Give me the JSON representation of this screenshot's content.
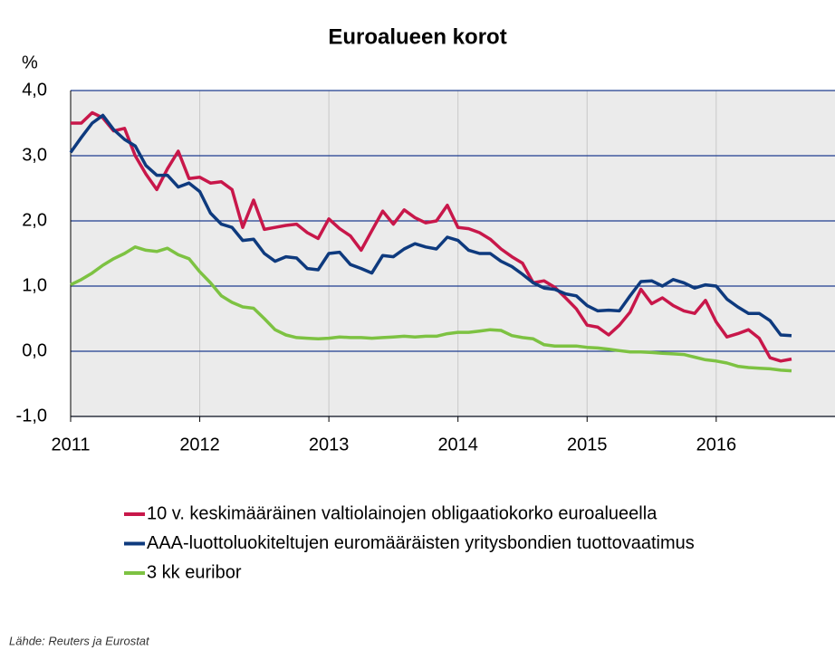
{
  "chart_data": {
    "type": "line",
    "title": "Euroalueen korot",
    "ylabel": "%",
    "source": "Lähde: Reuters ja Eurostat",
    "x": [
      2011,
      2011.083,
      2011.167,
      2011.25,
      2011.333,
      2011.417,
      2011.5,
      2011.583,
      2011.667,
      2011.75,
      2011.833,
      2011.917,
      2012,
      2012.083,
      2012.167,
      2012.25,
      2012.333,
      2012.417,
      2012.5,
      2012.583,
      2012.667,
      2012.75,
      2012.833,
      2012.917,
      2013,
      2013.083,
      2013.167,
      2013.25,
      2013.333,
      2013.417,
      2013.5,
      2013.583,
      2013.667,
      2013.75,
      2013.833,
      2013.917,
      2014,
      2014.083,
      2014.167,
      2014.25,
      2014.333,
      2014.417,
      2014.5,
      2014.583,
      2014.667,
      2014.75,
      2014.833,
      2014.917,
      2015,
      2015.083,
      2015.167,
      2015.25,
      2015.333,
      2015.417,
      2015.5,
      2015.583,
      2015.667,
      2015.75,
      2015.833,
      2015.917,
      2016,
      2016.083,
      2016.167,
      2016.25,
      2016.333,
      2016.417,
      2016.5,
      2016.583
    ],
    "series": [
      {
        "name": "10 v. keskimääräinen valtiolainojen obligaatiokorko euroalueella",
        "color": "#c8174a",
        "values": [
          3.5,
          3.5,
          3.66,
          3.58,
          3.38,
          3.42,
          3.0,
          2.72,
          2.48,
          2.8,
          3.07,
          2.65,
          2.67,
          2.58,
          2.6,
          2.48,
          1.9,
          2.32,
          1.87,
          1.9,
          1.93,
          1.95,
          1.82,
          1.73,
          2.03,
          1.88,
          1.77,
          1.55,
          1.85,
          2.15,
          1.95,
          2.17,
          2.05,
          1.97,
          2.0,
          2.24,
          1.9,
          1.88,
          1.82,
          1.72,
          1.57,
          1.45,
          1.35,
          1.05,
          1.08,
          0.98,
          0.82,
          0.65,
          0.4,
          0.37,
          0.25,
          0.4,
          0.6,
          0.95,
          0.73,
          0.82,
          0.7,
          0.62,
          0.58,
          0.78,
          0.45,
          0.22,
          0.27,
          0.33,
          0.2,
          -0.1,
          -0.15,
          -0.12
        ]
      },
      {
        "name": "AAA-luottoluokiteltujen euromääräisten yritysbondien tuottovaatimus",
        "color": "#0e3a7e",
        "values": [
          3.05,
          3.28,
          3.5,
          3.62,
          3.4,
          3.25,
          3.15,
          2.85,
          2.7,
          2.7,
          2.52,
          2.58,
          2.45,
          2.12,
          1.95,
          1.9,
          1.7,
          1.72,
          1.5,
          1.38,
          1.45,
          1.43,
          1.27,
          1.25,
          1.5,
          1.52,
          1.33,
          1.27,
          1.2,
          1.47,
          1.45,
          1.57,
          1.65,
          1.6,
          1.57,
          1.75,
          1.7,
          1.55,
          1.5,
          1.5,
          1.38,
          1.3,
          1.18,
          1.05,
          0.97,
          0.95,
          0.88,
          0.85,
          0.7,
          0.62,
          0.63,
          0.62,
          0.85,
          1.07,
          1.08,
          1.0,
          1.1,
          1.05,
          0.97,
          1.02,
          1.0,
          0.8,
          0.68,
          0.58,
          0.58,
          0.47,
          0.25,
          0.24
        ]
      },
      {
        "name": "3 kk euribor",
        "color": "#7dc242",
        "values": [
          1.02,
          1.1,
          1.2,
          1.32,
          1.42,
          1.5,
          1.6,
          1.55,
          1.53,
          1.58,
          1.48,
          1.42,
          1.22,
          1.05,
          0.85,
          0.75,
          0.68,
          0.66,
          0.5,
          0.33,
          0.25,
          0.21,
          0.2,
          0.19,
          0.2,
          0.22,
          0.21,
          0.21,
          0.2,
          0.21,
          0.22,
          0.23,
          0.22,
          0.23,
          0.23,
          0.27,
          0.29,
          0.29,
          0.31,
          0.33,
          0.32,
          0.24,
          0.21,
          0.19,
          0.1,
          0.08,
          0.08,
          0.08,
          0.06,
          0.05,
          0.03,
          0.01,
          -0.01,
          -0.01,
          -0.02,
          -0.03,
          -0.04,
          -0.05,
          -0.09,
          -0.13,
          -0.15,
          -0.18,
          -0.23,
          -0.25,
          -0.26,
          -0.27,
          -0.29,
          -0.3
        ]
      }
    ],
    "xlim": [
      2011,
      2016.92
    ],
    "xticks": [
      2011,
      2012,
      2013,
      2014,
      2015,
      2016
    ],
    "ylim": [
      -1,
      4
    ],
    "yticks": [
      {
        "value": -1,
        "label": "-1,0"
      },
      {
        "value": 0,
        "label": "0,0"
      },
      {
        "value": 1,
        "label": "1,0"
      },
      {
        "value": 2,
        "label": "2,0"
      },
      {
        "value": 3,
        "label": "3,0"
      },
      {
        "value": 4,
        "label": "4,0"
      }
    ],
    "grid": true,
    "legend": "bottom"
  }
}
